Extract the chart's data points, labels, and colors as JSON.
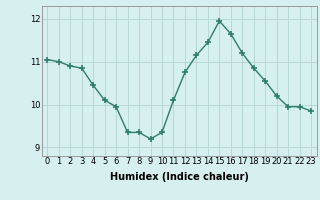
{
  "x": [
    0,
    1,
    2,
    3,
    4,
    5,
    6,
    7,
    8,
    9,
    10,
    11,
    12,
    13,
    14,
    15,
    16,
    17,
    18,
    19,
    20,
    21,
    22,
    23
  ],
  "y": [
    11.05,
    11.0,
    10.9,
    10.85,
    10.45,
    10.1,
    9.95,
    9.35,
    9.35,
    9.2,
    9.35,
    10.1,
    10.75,
    11.15,
    11.45,
    11.95,
    11.65,
    11.2,
    10.85,
    10.55,
    10.2,
    9.95,
    9.95,
    9.85
  ],
  "xlabel": "Humidex (Indice chaleur)",
  "ylim": [
    8.8,
    12.3
  ],
  "xlim": [
    -0.5,
    23.5
  ],
  "yticks": [
    9,
    10,
    11,
    12
  ],
  "xticks": [
    0,
    1,
    2,
    3,
    4,
    5,
    6,
    7,
    8,
    9,
    10,
    11,
    12,
    13,
    14,
    15,
    16,
    17,
    18,
    19,
    20,
    21,
    22,
    23
  ],
  "line_color": "#2e7d6e",
  "bg_color": "#d6efef",
  "grid_color": "#b8d8d8",
  "marker": "+",
  "marker_size": 4,
  "linewidth": 1.0,
  "tick_fontsize": 6.0,
  "xlabel_fontsize": 7.0
}
